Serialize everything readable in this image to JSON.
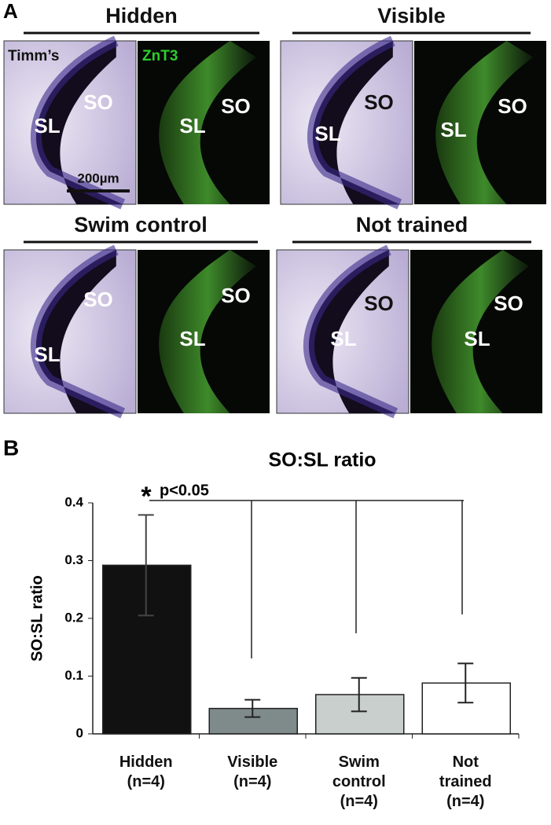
{
  "panel_a": {
    "label": "A",
    "stains": [
      "Timm’s",
      "ZnT3"
    ],
    "scale_bar": "200µm",
    "panels": [
      {
        "title": "Hidden",
        "labels": [
          "SL",
          "SO",
          "SL",
          "SO"
        ]
      },
      {
        "title": "Visible",
        "labels": [
          "SL",
          "SO",
          "SL",
          "SO"
        ]
      },
      {
        "title": "Swim control",
        "labels": [
          "SL",
          "SO",
          "SL",
          "SO"
        ]
      },
      {
        "title": "Not trained",
        "labels": [
          "SL",
          "SO",
          "SL",
          "SO"
        ]
      }
    ]
  },
  "chart_data": {
    "type": "bar",
    "panel_label": "B",
    "title": "SO:SL ratio",
    "y_label": "SO:SL ratio",
    "categories": [
      "Hidden (n=4)",
      "Visible (n=4)",
      "Swim control (n=4)",
      "Not trained (n=4)"
    ],
    "values": [
      0.292,
      0.044,
      0.068,
      0.088
    ],
    "errors": [
      0.087,
      0.015,
      0.029,
      0.034
    ],
    "colors": [
      "#111111",
      "#7f8a8a",
      "#c8cfcd",
      "#ffffff"
    ],
    "ylim": [
      0,
      0.4
    ],
    "yticks": [
      0,
      0.1,
      0.2,
      0.3,
      0.4
    ],
    "annotation_star": "*",
    "annotation": "p<0.05"
  }
}
